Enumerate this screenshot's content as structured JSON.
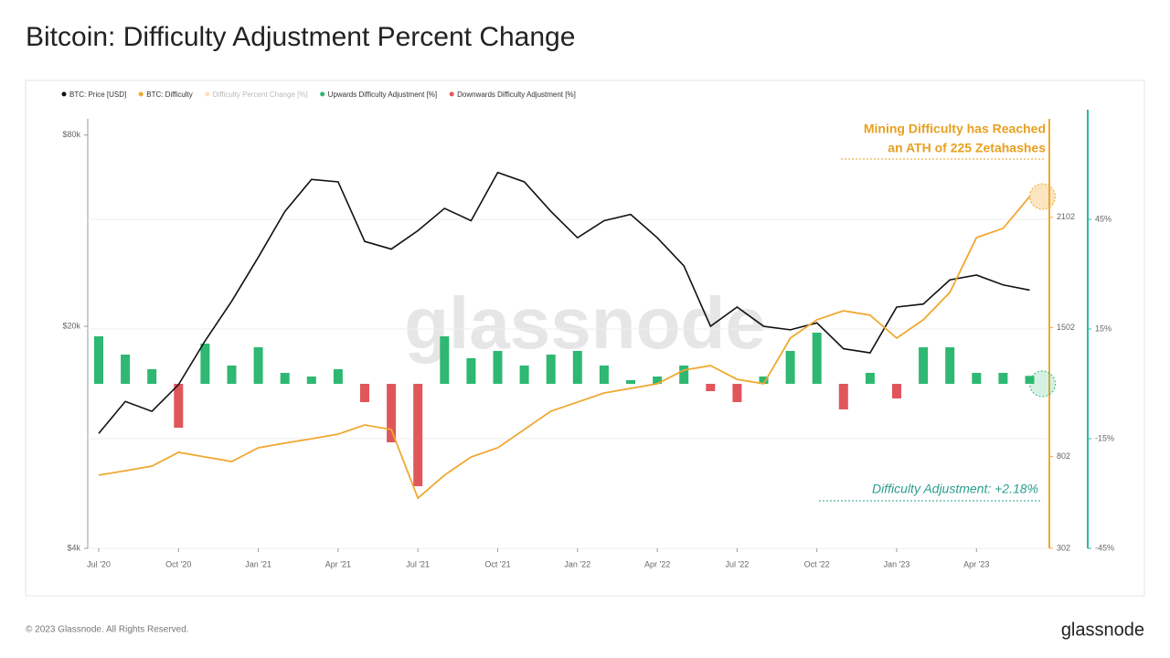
{
  "chart_data": {
    "type": "combo",
    "title": "Bitcoin: Difficulty Adjustment Percent Change",
    "x": [
      "Jul '20",
      "Aug '20",
      "Sep '20",
      "Oct '20",
      "Nov '20",
      "Dec '20",
      "Jan '21",
      "Feb '21",
      "Mar '21",
      "Apr '21",
      "May '21",
      "Jun '21",
      "Jul '21",
      "Aug '21",
      "Sep '21",
      "Oct '21",
      "Nov '21",
      "Dec '21",
      "Jan '22",
      "Feb '22",
      "Mar '22",
      "Apr '22",
      "May '22",
      "Jun '22",
      "Jul '22",
      "Aug '22",
      "Sep '22",
      "Oct '22",
      "Nov '22",
      "Dec '22",
      "Jan '23",
      "Feb '23",
      "Mar '23",
      "Apr '23",
      "May '23",
      "Jun '23"
    ],
    "xticks": [
      "Jul '20",
      "Oct '20",
      "Jan '21",
      "Apr '21",
      "Jul '21",
      "Oct '21",
      "Jan '22",
      "Apr '22",
      "Jul '22",
      "Oct '22",
      "Jan '23",
      "Apr '23"
    ],
    "series": [
      {
        "name": "BTC: Price [USD]",
        "color": "#111111",
        "kind": "line",
        "axis": "y",
        "values": [
          9200,
          11600,
          10800,
          13100,
          18000,
          24000,
          33000,
          46000,
          58000,
          57000,
          37000,
          35000,
          40000,
          47000,
          43000,
          61000,
          57000,
          46000,
          38000,
          43000,
          45000,
          38000,
          31000,
          20000,
          23000,
          20000,
          19500,
          20500,
          17000,
          16500,
          23000,
          23500,
          28000,
          29000,
          27000,
          26000
        ]
      },
      {
        "name": "BTC: Difficulty",
        "color": "#f0a830",
        "kind": "line",
        "axis": "y2",
        "values": [
          700,
          724,
          749,
          824,
          799,
          774,
          849,
          874,
          898,
          923,
          973,
          948,
          575,
          700,
          799,
          849,
          948,
          1048,
          1097,
          1147,
          1172,
          1197,
          1271,
          1296,
          1221,
          1197,
          1445,
          1545,
          1594,
          1570,
          1445,
          1545,
          1694,
          1992,
          2042,
          2215
        ]
      },
      {
        "name": "Upwards Difficulty Adjustment [%]",
        "color": "#2eb872",
        "kind": "bar",
        "axis": "y3",
        "values": [
          13,
          8,
          4,
          null,
          11,
          5,
          10,
          3,
          2,
          4,
          null,
          null,
          null,
          13,
          7,
          9,
          5,
          8,
          9,
          5,
          1,
          2,
          5,
          null,
          null,
          2,
          9,
          14,
          null,
          3,
          null,
          10,
          10,
          3,
          3,
          2.18
        ]
      },
      {
        "name": "Downwards Difficulty Adjustment [%]",
        "color": "#e0565b",
        "kind": "bar",
        "axis": "y3",
        "values": [
          null,
          null,
          null,
          -12,
          null,
          null,
          null,
          null,
          null,
          null,
          -5,
          -16,
          -28,
          null,
          null,
          null,
          null,
          null,
          null,
          null,
          null,
          null,
          null,
          -2,
          -5,
          null,
          null,
          null,
          -7,
          null,
          -4,
          null,
          null,
          null,
          null,
          null
        ]
      }
    ],
    "legend_hidden": [
      "Difficulty Percent Change [%]"
    ],
    "log_y": true,
    "ylim": [
      4000,
      90000
    ],
    "yticks": [
      {
        "value": 4000,
        "label": "$4k"
      },
      {
        "value": 20000,
        "label": "$20k"
      },
      {
        "value": 80000,
        "label": "$80k"
      }
    ],
    "y2lim": [
      302,
      2638
    ],
    "y2ticks": [
      302,
      802,
      1502,
      2102
    ],
    "y3lim": [
      -45,
      72.5
    ],
    "y3ticks": [
      {
        "value": -45,
        "label": "-45%"
      },
      {
        "value": -15,
        "label": "-15%"
      },
      {
        "value": 15,
        "label": "15%"
      },
      {
        "value": 45,
        "label": "45%"
      }
    ],
    "grid": true,
    "annotations": [
      "Mining Difficulty has Reached",
      "an ATH of 225 Zetahashes",
      "Difficulty Adjustment: +2.18%"
    ],
    "watermark": "glassnode",
    "footer": "© 2023 Glassnode. All Rights Reserved.",
    "brand": "glassnode"
  }
}
